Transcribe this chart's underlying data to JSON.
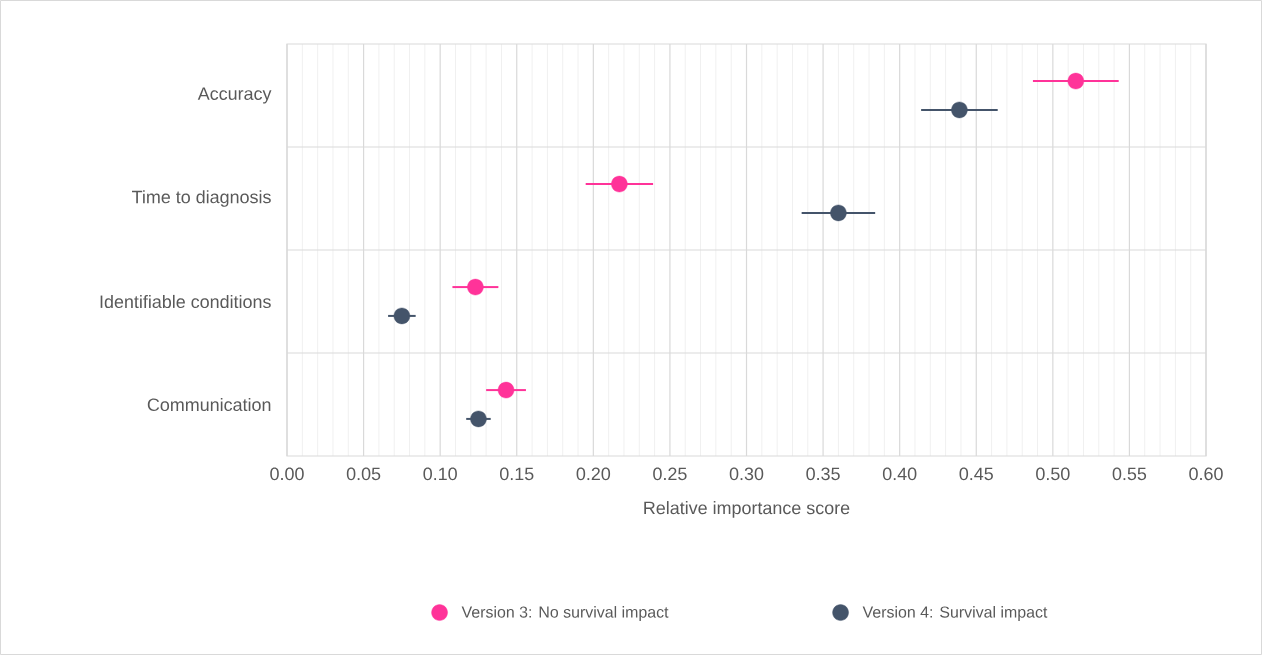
{
  "chart_data": {
    "type": "scatter",
    "orientation": "horizontal",
    "categories": [
      "Accuracy",
      "Time to diagnosis",
      "Identifiable conditions",
      "Communication"
    ],
    "series": [
      {
        "name": "Version 3: No survival impact",
        "color": "#ff3399",
        "values": [
          0.515,
          0.217,
          0.123,
          0.143
        ],
        "errors": [
          0.028,
          0.022,
          0.015,
          0.013
        ]
      },
      {
        "name": "Version 4: Survival impact",
        "color": "#44546a",
        "values": [
          0.439,
          0.36,
          0.075,
          0.125
        ],
        "errors": [
          0.025,
          0.024,
          0.009,
          0.008
        ]
      }
    ],
    "xlabel": "Relative importance score",
    "xlim": [
      0,
      0.6
    ],
    "xticks": [
      {
        "value": 0,
        "label": "0.00"
      },
      0.05,
      {
        "value": 0.1,
        "label": "0.10"
      },
      0.15,
      {
        "value": 0.2,
        "label": "0.20"
      },
      0.25,
      {
        "value": 0.3,
        "label": "0.30"
      },
      0.35,
      {
        "value": 0.4,
        "label": "0.40"
      },
      0.45,
      {
        "value": 0.5,
        "label": "0.50"
      },
      0.55,
      {
        "value": 0.6,
        "label": "0.60"
      }
    ],
    "grid": true,
    "legend": "bottom",
    "marker": "circle"
  }
}
